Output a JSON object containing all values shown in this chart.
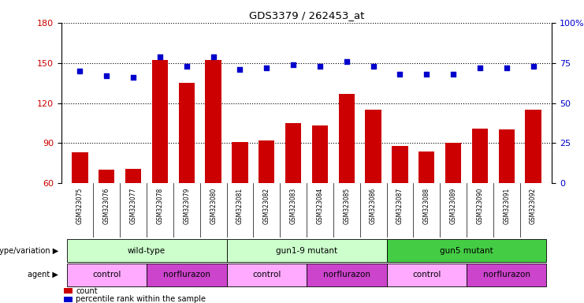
{
  "title": "GDS3379 / 262453_at",
  "samples": [
    "GSM323075",
    "GSM323076",
    "GSM323077",
    "GSM323078",
    "GSM323079",
    "GSM323080",
    "GSM323081",
    "GSM323082",
    "GSM323083",
    "GSM323084",
    "GSM323085",
    "GSM323086",
    "GSM323087",
    "GSM323088",
    "GSM323089",
    "GSM323090",
    "GSM323091",
    "GSM323092"
  ],
  "counts": [
    83,
    70,
    71,
    152,
    135,
    152,
    91,
    92,
    105,
    103,
    127,
    115,
    88,
    84,
    90,
    101,
    100,
    115
  ],
  "percentile_ranks": [
    70,
    67,
    66,
    79,
    73,
    79,
    71,
    72,
    74,
    73,
    76,
    73,
    68,
    68,
    68,
    72,
    72,
    73
  ],
  "bar_color": "#cc0000",
  "dot_color": "#0000cc",
  "ylim_left": [
    60,
    180
  ],
  "ylim_right": [
    0,
    100
  ],
  "yticks_left": [
    60,
    90,
    120,
    150,
    180
  ],
  "yticks_right": [
    0,
    25,
    50,
    75,
    100
  ],
  "geno_data": [
    {
      "start": 0,
      "end": 5,
      "label": "wild-type",
      "color": "#ccffcc"
    },
    {
      "start": 6,
      "end": 11,
      "label": "gun1-9 mutant",
      "color": "#ccffcc"
    },
    {
      "start": 12,
      "end": 17,
      "label": "gun5 mutant",
      "color": "#44cc44"
    }
  ],
  "agent_data": [
    {
      "start": 0,
      "end": 2,
      "label": "control",
      "color": "#ffaaff"
    },
    {
      "start": 3,
      "end": 5,
      "label": "norflurazon",
      "color": "#cc44cc"
    },
    {
      "start": 6,
      "end": 8,
      "label": "control",
      "color": "#ffaaff"
    },
    {
      "start": 9,
      "end": 11,
      "label": "norflurazon",
      "color": "#cc44cc"
    },
    {
      "start": 12,
      "end": 14,
      "label": "control",
      "color": "#ffaaff"
    },
    {
      "start": 15,
      "end": 17,
      "label": "norflurazon",
      "color": "#cc44cc"
    }
  ],
  "legend_count_color": "#cc0000",
  "legend_pct_color": "#0000cc",
  "background_color": "#ffffff",
  "plot_bg_color": "#ffffff",
  "xtick_bg_color": "#c8c8c8",
  "bar_width": 0.6
}
